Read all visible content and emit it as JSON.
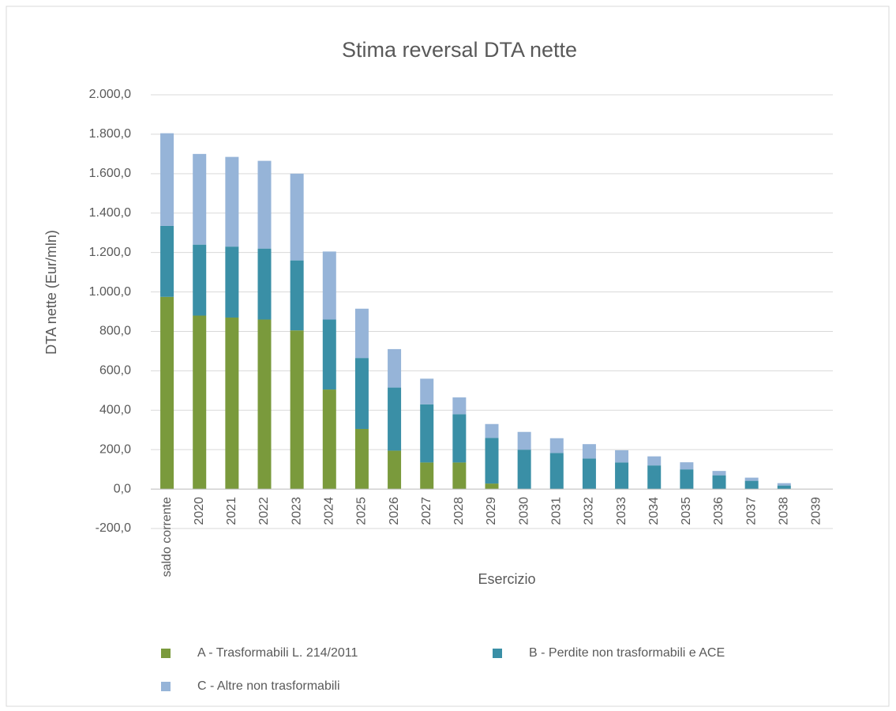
{
  "chart_data": {
    "type": "stacked_bar",
    "title": "Stima reversal DTA nette",
    "x_label": "Esercizio",
    "y_label": "DTA nette (Eur/mln)",
    "categories": [
      "saldo corrente",
      "2020",
      "2021",
      "2022",
      "2023",
      "2024",
      "2025",
      "2026",
      "2027",
      "2028",
      "2029",
      "2030",
      "2031",
      "2032",
      "2033",
      "2034",
      "2035",
      "2036",
      "2037",
      "2038",
      "2039"
    ],
    "series": [
      {
        "name": "A - Trasformabili L. 214/2011",
        "color": "#7a9a3c",
        "values": [
          975,
          880,
          870,
          860,
          805,
          505,
          305,
          195,
          135,
          135,
          28,
          0,
          0,
          0,
          0,
          0,
          0,
          0,
          0,
          0,
          0
        ]
      },
      {
        "name": "B - Perdite non trasformabili e ACE",
        "color": "#3a8fa6",
        "values": [
          360,
          360,
          360,
          360,
          355,
          355,
          360,
          320,
          295,
          245,
          232,
          200,
          183,
          155,
          135,
          120,
          100,
          70,
          42,
          18,
          0
        ]
      },
      {
        "name": "C - Altre non trasformabili",
        "color": "#96b4d8",
        "values": [
          470,
          460,
          455,
          445,
          440,
          345,
          250,
          195,
          130,
          85,
          70,
          90,
          75,
          73,
          62,
          46,
          36,
          22,
          16,
          12,
          0
        ]
      }
    ],
    "ylim": [
      -200,
      2000
    ],
    "yticks": [
      {
        "value": -200,
        "label": "-200,0"
      },
      {
        "value": 0,
        "label": "0,0"
      },
      {
        "value": 200,
        "label": "200,0"
      },
      {
        "value": 400,
        "label": "400,0"
      },
      {
        "value": 600,
        "label": "600,0"
      },
      {
        "value": 800,
        "label": "800,0"
      },
      {
        "value": 1000,
        "label": "1.000,0"
      },
      {
        "value": 1200,
        "label": "1.200,0"
      },
      {
        "value": 1400,
        "label": "1.400,0"
      },
      {
        "value": 1600,
        "label": "1.600,0"
      },
      {
        "value": 1800,
        "label": "1.800,0"
      },
      {
        "value": 2000,
        "label": "2.000,0"
      }
    ],
    "grid": true,
    "legend": "bottom"
  }
}
